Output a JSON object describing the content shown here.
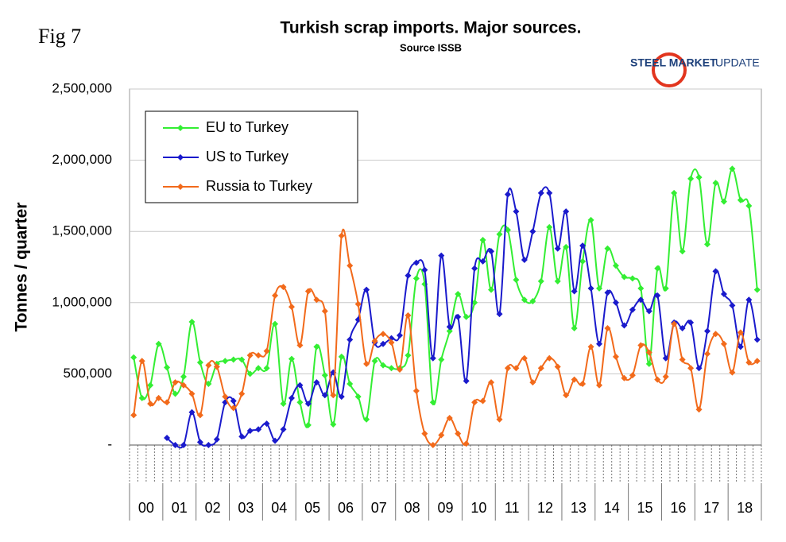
{
  "fig_label": "Fig 7",
  "logo": {
    "primary": "STEEL MARKET",
    "secondary": "UPDATE"
  },
  "chart_data": {
    "type": "line",
    "title": "Turkish scrap imports. Major sources.",
    "subtitle": "Source ISSB",
    "y_axis_label": "Tonnes / quarter",
    "categories": [
      "00",
      null,
      null,
      null,
      "01",
      null,
      null,
      null,
      "02",
      null,
      null,
      null,
      "03",
      null,
      null,
      null,
      "04",
      null,
      null,
      null,
      "05",
      null,
      null,
      null,
      "06",
      null,
      null,
      null,
      "07",
      null,
      null,
      null,
      "08",
      null,
      null,
      null,
      "09",
      null,
      null,
      null,
      "10",
      null,
      null,
      null,
      "11",
      null,
      null,
      null,
      "12",
      null,
      null,
      null,
      "13",
      null,
      null,
      null,
      "14",
      null,
      null,
      null,
      "15",
      null,
      null,
      null,
      "16",
      null,
      null,
      null,
      "17",
      null,
      null,
      null,
      "18",
      null,
      null,
      null
    ],
    "series": [
      {
        "name": "EU to Turkey",
        "color": "#33ee33",
        "values": [
          615000,
          330000,
          420000,
          710000,
          545000,
          360000,
          480000,
          865000,
          580000,
          430000,
          570000,
          590000,
          600000,
          600000,
          500000,
          540000,
          540000,
          850000,
          290000,
          605000,
          300000,
          140000,
          690000,
          490000,
          145000,
          620000,
          430000,
          340000,
          180000,
          590000,
          560000,
          540000,
          540000,
          630000,
          1170000,
          1130000,
          300000,
          600000,
          800000,
          1060000,
          900000,
          1000000,
          1440000,
          1090000,
          1480000,
          1510000,
          1160000,
          1020000,
          1010000,
          1150000,
          1530000,
          1150000,
          1390000,
          820000,
          1290000,
          1580000,
          1100000,
          1380000,
          1260000,
          1180000,
          1170000,
          1100000,
          570000,
          1240000,
          1100000,
          1770000,
          1360000,
          1870000,
          1880000,
          1410000,
          1840000,
          1710000,
          1940000,
          1720000,
          1680000,
          1090000
        ]
      },
      {
        "name": "US to Turkey",
        "color": "#1a1acc",
        "values": [
          null,
          null,
          null,
          null,
          50000,
          0,
          0,
          230000,
          20000,
          0,
          40000,
          300000,
          310000,
          60000,
          100000,
          110000,
          150000,
          30000,
          110000,
          330000,
          420000,
          290000,
          440000,
          350000,
          510000,
          340000,
          740000,
          880000,
          1090000,
          720000,
          710000,
          750000,
          770000,
          1190000,
          1280000,
          1230000,
          610000,
          1330000,
          830000,
          900000,
          450000,
          1240000,
          1290000,
          1360000,
          920000,
          1760000,
          1640000,
          1300000,
          1500000,
          1770000,
          1770000,
          1380000,
          1640000,
          1080000,
          1400000,
          1100000,
          710000,
          1070000,
          1000000,
          840000,
          950000,
          1020000,
          940000,
          1050000,
          610000,
          860000,
          820000,
          860000,
          540000,
          800000,
          1220000,
          1060000,
          980000,
          690000,
          1020000,
          740000
        ]
      },
      {
        "name": "Russia to Turkey",
        "color": "#f26a1b",
        "values": [
          210000,
          590000,
          290000,
          330000,
          300000,
          440000,
          420000,
          360000,
          210000,
          560000,
          550000,
          340000,
          260000,
          360000,
          630000,
          630000,
          660000,
          1050000,
          1110000,
          970000,
          700000,
          1080000,
          1020000,
          940000,
          350000,
          1470000,
          1260000,
          990000,
          570000,
          730000,
          780000,
          720000,
          530000,
          910000,
          380000,
          80000,
          0,
          70000,
          190000,
          80000,
          10000,
          300000,
          310000,
          440000,
          180000,
          540000,
          540000,
          610000,
          440000,
          540000,
          610000,
          550000,
          350000,
          460000,
          430000,
          690000,
          420000,
          820000,
          620000,
          470000,
          490000,
          700000,
          650000,
          460000,
          480000,
          850000,
          600000,
          540000,
          250000,
          640000,
          780000,
          710000,
          510000,
          790000,
          580000,
          590000
        ]
      }
    ],
    "ylim": [
      0,
      2500000
    ],
    "yticks": [
      {
        "value": 0,
        "label": "-"
      },
      {
        "value": 500000,
        "label": "500,000"
      },
      {
        "value": 1000000,
        "label": "1,000,000"
      },
      {
        "value": 1500000,
        "label": "1,500,000"
      },
      {
        "value": 2000000,
        "label": "2,000,000"
      },
      {
        "value": 2500000,
        "label": "2,500,000"
      }
    ],
    "grid": true,
    "legend": "upper-left"
  }
}
